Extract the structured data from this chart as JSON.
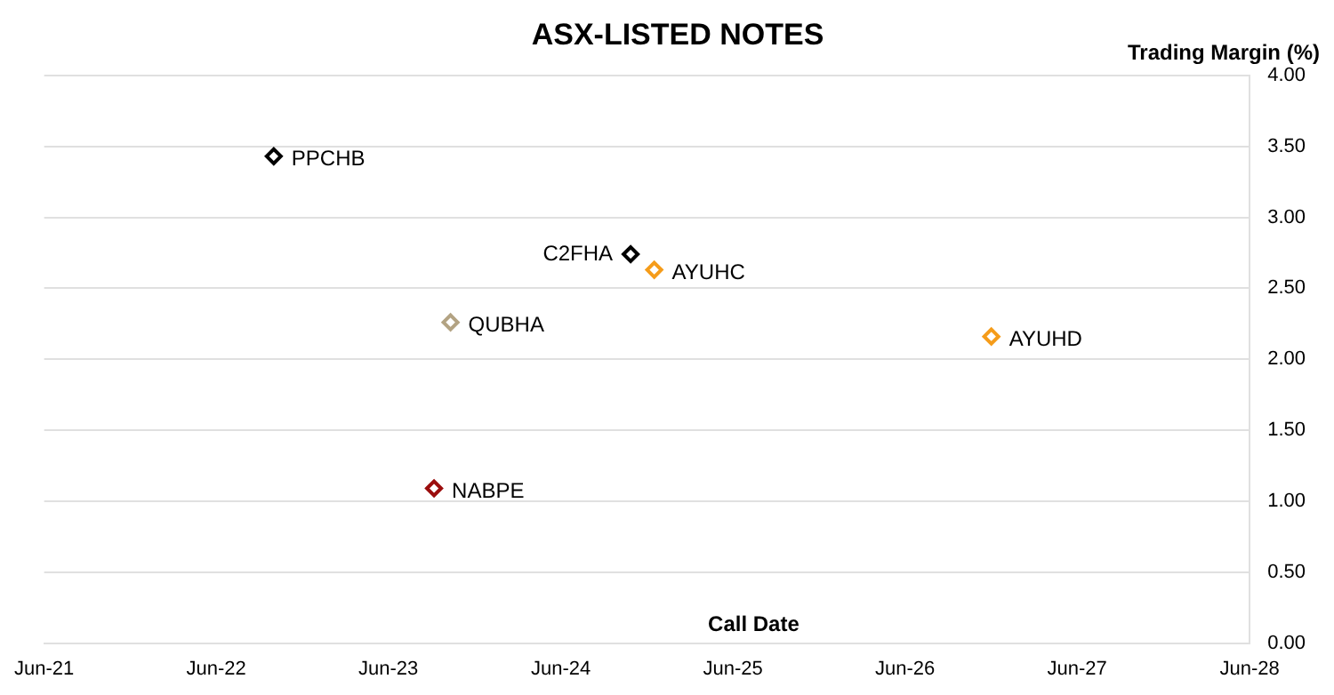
{
  "chart_data": {
    "type": "scatter",
    "title": "ASX-LISTED NOTES",
    "xlabel": "Call Date",
    "ylabel": "Trading Margin (%)",
    "series": [
      {
        "name": "PPCHB",
        "color": "#000000",
        "x": [
          "2022-10-15"
        ],
        "values": [
          3.43
        ]
      },
      {
        "name": "C2FHA",
        "color": "#000000",
        "x": [
          "2024-11-10"
        ],
        "values": [
          2.74
        ]
      },
      {
        "name": "AYUHC",
        "color": "#f59c1a",
        "x": [
          "2024-12-30"
        ],
        "values": [
          2.63
        ]
      },
      {
        "name": "QUBHA",
        "color": "#b3a383",
        "x": [
          "2023-10-25"
        ],
        "values": [
          2.26
        ]
      },
      {
        "name": "AYUHD",
        "color": "#f59c1a",
        "x": [
          "2026-12-15"
        ],
        "values": [
          2.16
        ]
      },
      {
        "name": "NABPE",
        "color": "#9b0d0d",
        "x": [
          "2023-09-20"
        ],
        "values": [
          1.09
        ]
      }
    ],
    "xlim": [
      "2021-06-15",
      "2028-06-15"
    ],
    "xticks": [
      {
        "value": "2021-06-15",
        "label": "Jun-21"
      },
      {
        "value": "2022-06-15",
        "label": "Jun-22"
      },
      {
        "value": "2023-06-15",
        "label": "Jun-23"
      },
      {
        "value": "2024-06-15",
        "label": "Jun-24"
      },
      {
        "value": "2025-06-15",
        "label": "Jun-25"
      },
      {
        "value": "2026-06-15",
        "label": "Jun-26"
      },
      {
        "value": "2027-06-15",
        "label": "Jun-27"
      },
      {
        "value": "2028-06-15",
        "label": "Jun-28"
      }
    ],
    "ylim": [
      0,
      4
    ],
    "yticks": [
      {
        "value": 0,
        "label": "0.00"
      },
      {
        "value": 0.5,
        "label": "0.50"
      },
      {
        "value": 1,
        "label": "1.00"
      },
      {
        "value": 1.5,
        "label": "1.50"
      },
      {
        "value": 2,
        "label": "2.00"
      },
      {
        "value": 2.5,
        "label": "2.50"
      },
      {
        "value": 3,
        "label": "3.00"
      },
      {
        "value": 3.5,
        "label": "3.50"
      },
      {
        "value": 4,
        "label": "4.00"
      }
    ],
    "grid": "y",
    "legend": false,
    "marker": "diamond"
  }
}
